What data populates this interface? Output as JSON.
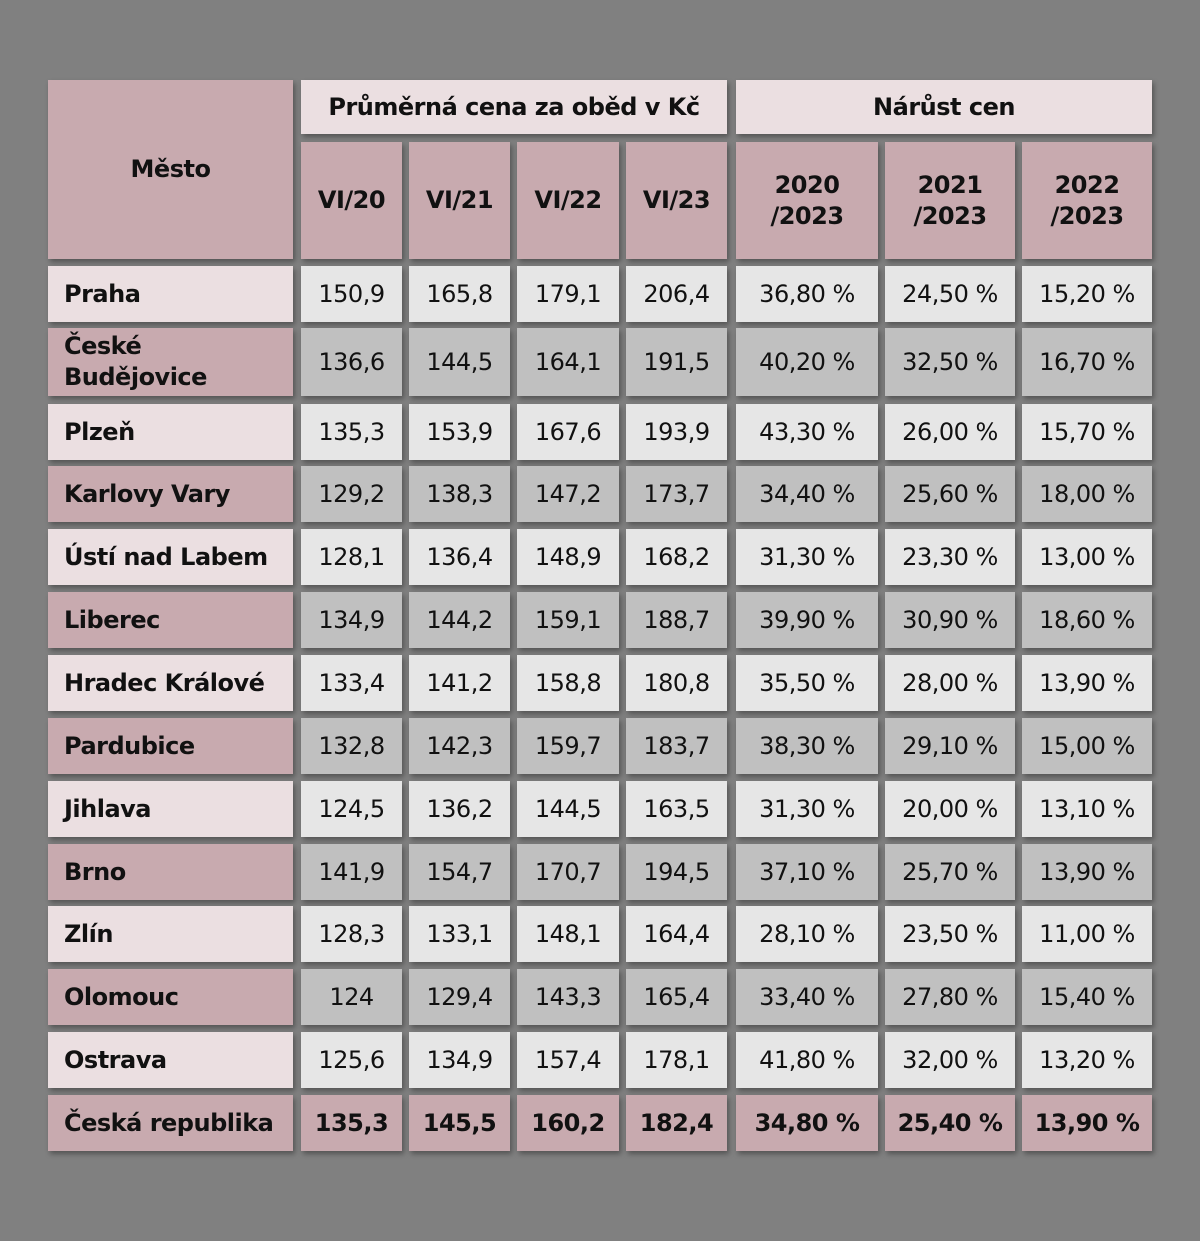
{
  "header": {
    "city": "Město",
    "group_price": "Průměrná cena za oběd v Kč",
    "group_growth": "Nárůst cen",
    "columns": [
      "VI/20",
      "VI/21",
      "VI/22",
      "VI/23",
      "2020\n/2023",
      "2021\n/2023",
      "2022\n/2023"
    ]
  },
  "table": {
    "rows": [
      {
        "city": "Praha",
        "cells": [
          "150,9",
          "165,8",
          "179,1",
          "206,4",
          "36,80 %",
          "24,50 %",
          "15,20 %"
        ]
      },
      {
        "city": "České\nBudějovice",
        "cells": [
          "136,6",
          "144,5",
          "164,1",
          "191,5",
          "40,20 %",
          "32,50 %",
          "16,70 %"
        ]
      },
      {
        "city": "Plzeň",
        "cells": [
          "135,3",
          "153,9",
          "167,6",
          "193,9",
          "43,30 %",
          "26,00 %",
          "15,70 %"
        ]
      },
      {
        "city": "Karlovy Vary",
        "cells": [
          "129,2",
          "138,3",
          "147,2",
          "173,7",
          "34,40 %",
          "25,60 %",
          "18,00 %"
        ]
      },
      {
        "city": "Ústí nad Labem",
        "cells": [
          "128,1",
          "136,4",
          "148,9",
          "168,2",
          "31,30 %",
          "23,30 %",
          "13,00 %"
        ]
      },
      {
        "city": "Liberec",
        "cells": [
          "134,9",
          "144,2",
          "159,1",
          "188,7",
          "39,90 %",
          "30,90 %",
          "18,60 %"
        ]
      },
      {
        "city": "Hradec Králové",
        "cells": [
          "133,4",
          "141,2",
          "158,8",
          "180,8",
          "35,50 %",
          "28,00 %",
          "13,90 %"
        ]
      },
      {
        "city": "Pardubice",
        "cells": [
          "132,8",
          "142,3",
          "159,7",
          "183,7",
          "38,30 %",
          "29,10 %",
          "15,00 %"
        ]
      },
      {
        "city": "Jihlava",
        "cells": [
          "124,5",
          "136,2",
          "144,5",
          "163,5",
          "31,30 %",
          "20,00 %",
          "13,10 %"
        ]
      },
      {
        "city": "Brno",
        "cells": [
          "141,9",
          "154,7",
          "170,7",
          "194,5",
          "37,10 %",
          "25,70 %",
          "13,90 %"
        ]
      },
      {
        "city": "Zlín",
        "cells": [
          "128,3",
          "133,1",
          "148,1",
          "164,4",
          "28,10 %",
          "23,50 %",
          "11,00 %"
        ]
      },
      {
        "city": "Olomouc",
        "cells": [
          "124",
          "129,4",
          "143,3",
          "165,4",
          "33,40 %",
          "27,80 %",
          "15,40 %"
        ]
      },
      {
        "city": "Ostrava",
        "cells": [
          "125,6",
          "134,9",
          "157,4",
          "178,1",
          "41,80 %",
          "32,00 %",
          "13,20 %"
        ]
      },
      {
        "city": "Česká republika",
        "cells": [
          "135,3",
          "145,5",
          "160,2",
          "182,4",
          "34,80 %",
          "25,40 %",
          "13,90 %"
        ]
      }
    ]
  }
}
